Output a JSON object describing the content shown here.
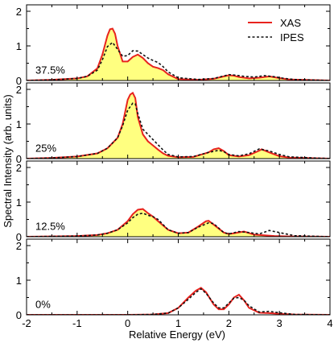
{
  "chart_data": {
    "type": "line",
    "xlabel": "Relative Energy (eV)",
    "ylabel": "Spectral Intensity (arb. units)",
    "xlim": [
      -2,
      4
    ],
    "ylim": [
      0,
      2
    ],
    "x_ticks": [
      -2,
      -1,
      0,
      1,
      2,
      3,
      4
    ],
    "y_ticks": [
      0,
      1,
      2
    ],
    "grid": false,
    "legend_position": "top-right",
    "fill_series": "XAS",
    "colors": {
      "XAS": "#e8231e",
      "IPES": "#111111",
      "fill": "#ffff80"
    },
    "legend": [
      {
        "name": "XAS",
        "color": "#e8231e",
        "style": "solid"
      },
      {
        "name": "IPES",
        "color": "#111111",
        "style": "dashed"
      }
    ],
    "panels": [
      {
        "label": "37.5%",
        "series": [
          {
            "name": "XAS",
            "x": [
              -2.0,
              -1.5,
              -1.0,
              -0.8,
              -0.6,
              -0.5,
              -0.4,
              -0.35,
              -0.3,
              -0.25,
              -0.2,
              -0.1,
              0.0,
              0.1,
              0.2,
              0.3,
              0.4,
              0.5,
              0.6,
              0.7,
              0.8,
              1.0,
              1.4,
              1.7,
              1.9,
              2.0,
              2.1,
              2.2,
              2.4,
              2.6,
              2.8,
              3.0,
              3.2,
              4.0
            ],
            "y": [
              0.0,
              0.02,
              0.06,
              0.12,
              0.35,
              0.75,
              1.3,
              1.48,
              1.5,
              1.35,
              1.0,
              0.55,
              0.55,
              0.68,
              0.75,
              0.65,
              0.5,
              0.4,
              0.36,
              0.3,
              0.18,
              0.04,
              0.02,
              0.05,
              0.12,
              0.15,
              0.14,
              0.1,
              0.06,
              0.08,
              0.12,
              0.07,
              0.03,
              0.0
            ]
          },
          {
            "name": "IPES",
            "x": [
              -2.0,
              -1.5,
              -1.0,
              -0.8,
              -0.6,
              -0.5,
              -0.4,
              -0.3,
              -0.2,
              -0.1,
              0.0,
              0.1,
              0.2,
              0.3,
              0.4,
              0.5,
              0.6,
              0.7,
              0.8,
              1.0,
              1.4,
              1.7,
              1.9,
              2.0,
              2.1,
              2.3,
              2.5,
              2.7,
              2.9,
              3.1,
              3.3,
              4.0
            ],
            "y": [
              0.0,
              0.02,
              0.06,
              0.12,
              0.3,
              0.6,
              0.98,
              1.1,
              0.9,
              0.7,
              0.72,
              0.86,
              0.85,
              0.75,
              0.65,
              0.58,
              0.52,
              0.4,
              0.25,
              0.08,
              0.03,
              0.06,
              0.13,
              0.17,
              0.16,
              0.12,
              0.1,
              0.14,
              0.11,
              0.06,
              0.03,
              0.0
            ]
          }
        ]
      },
      {
        "label": "25%",
        "series": [
          {
            "name": "XAS",
            "x": [
              -2.0,
              -1.5,
              -1.0,
              -0.6,
              -0.4,
              -0.2,
              -0.1,
              0.0,
              0.05,
              0.1,
              0.15,
              0.2,
              0.3,
              0.4,
              0.5,
              0.6,
              0.7,
              0.8,
              1.0,
              1.3,
              1.6,
              1.7,
              1.8,
              1.9,
              2.0,
              2.2,
              2.4,
              2.6,
              2.65,
              2.8,
              3.0,
              3.2,
              4.0
            ],
            "y": [
              0.0,
              0.02,
              0.06,
              0.15,
              0.3,
              0.6,
              1.0,
              1.7,
              1.85,
              1.9,
              1.75,
              1.2,
              0.7,
              0.5,
              0.38,
              0.26,
              0.15,
              0.08,
              0.04,
              0.05,
              0.18,
              0.27,
              0.3,
              0.22,
              0.1,
              0.06,
              0.1,
              0.23,
              0.27,
              0.18,
              0.07,
              0.03,
              0.0
            ]
          },
          {
            "name": "IPES",
            "x": [
              -2.0,
              -1.5,
              -1.0,
              -0.6,
              -0.4,
              -0.2,
              -0.1,
              0.0,
              0.1,
              0.15,
              0.2,
              0.3,
              0.4,
              0.5,
              0.6,
              0.7,
              0.8,
              1.0,
              1.3,
              1.6,
              1.8,
              1.9,
              2.0,
              2.2,
              2.4,
              2.6,
              2.8,
              3.0,
              3.2,
              4.0
            ],
            "y": [
              0.0,
              0.02,
              0.06,
              0.15,
              0.3,
              0.6,
              0.95,
              1.4,
              1.6,
              1.58,
              1.3,
              0.85,
              0.7,
              0.55,
              0.4,
              0.25,
              0.12,
              0.05,
              0.06,
              0.18,
              0.24,
              0.2,
              0.12,
              0.08,
              0.14,
              0.28,
              0.22,
              0.12,
              0.05,
              0.0
            ]
          }
        ]
      },
      {
        "label": "12.5%",
        "series": [
          {
            "name": "XAS",
            "x": [
              -2.0,
              -1.5,
              -1.0,
              -0.6,
              -0.4,
              -0.2,
              0.0,
              0.1,
              0.2,
              0.3,
              0.4,
              0.5,
              0.6,
              0.8,
              1.0,
              1.2,
              1.4,
              1.55,
              1.6,
              1.7,
              1.9,
              2.0,
              2.1,
              2.3,
              2.5,
              2.7,
              2.9,
              3.2,
              4.0
            ],
            "y": [
              0.0,
              0.01,
              0.02,
              0.05,
              0.1,
              0.2,
              0.45,
              0.65,
              0.78,
              0.8,
              0.68,
              0.58,
              0.45,
              0.2,
              0.1,
              0.12,
              0.3,
              0.45,
              0.46,
              0.35,
              0.12,
              0.08,
              0.1,
              0.15,
              0.06,
              0.04,
              0.02,
              0.01,
              0.0
            ]
          },
          {
            "name": "IPES",
            "x": [
              -2.0,
              -1.5,
              -1.0,
              -0.6,
              -0.4,
              -0.2,
              0.0,
              0.1,
              0.2,
              0.3,
              0.4,
              0.5,
              0.6,
              0.7,
              0.8,
              1.0,
              1.2,
              1.4,
              1.6,
              1.7,
              1.9,
              2.0,
              2.2,
              2.4,
              2.6,
              2.8,
              3.0,
              3.3,
              4.0
            ],
            "y": [
              0.0,
              0.01,
              0.02,
              0.05,
              0.1,
              0.2,
              0.4,
              0.55,
              0.65,
              0.68,
              0.62,
              0.58,
              0.5,
              0.35,
              0.2,
              0.1,
              0.12,
              0.28,
              0.4,
              0.38,
              0.12,
              0.08,
              0.15,
              0.12,
              0.08,
              0.18,
              0.12,
              0.03,
              0.0
            ]
          }
        ]
      },
      {
        "label": "0%",
        "series": [
          {
            "name": "XAS",
            "x": [
              -2.0,
              0.0,
              0.5,
              0.8,
              1.0,
              1.2,
              1.35,
              1.45,
              1.55,
              1.7,
              1.8,
              1.9,
              2.0,
              2.1,
              2.2,
              2.3,
              2.4,
              2.6,
              2.8,
              3.0,
              3.3,
              4.0
            ],
            "y": [
              0.0,
              0.0,
              0.01,
              0.05,
              0.2,
              0.5,
              0.7,
              0.78,
              0.65,
              0.3,
              0.16,
              0.16,
              0.3,
              0.5,
              0.58,
              0.42,
              0.2,
              0.06,
              0.05,
              0.03,
              0.01,
              0.0
            ]
          },
          {
            "name": "IPES",
            "x": [
              -2.0,
              0.0,
              0.5,
              0.8,
              1.0,
              1.2,
              1.35,
              1.45,
              1.55,
              1.7,
              1.8,
              1.9,
              2.0,
              2.1,
              2.2,
              2.3,
              2.4,
              2.6,
              2.8,
              3.0,
              3.3,
              4.0
            ],
            "y": [
              0.0,
              0.0,
              0.01,
              0.05,
              0.2,
              0.45,
              0.65,
              0.75,
              0.62,
              0.34,
              0.2,
              0.2,
              0.34,
              0.48,
              0.5,
              0.42,
              0.26,
              0.08,
              0.1,
              0.06,
              0.01,
              0.0
            ]
          }
        ]
      }
    ]
  }
}
